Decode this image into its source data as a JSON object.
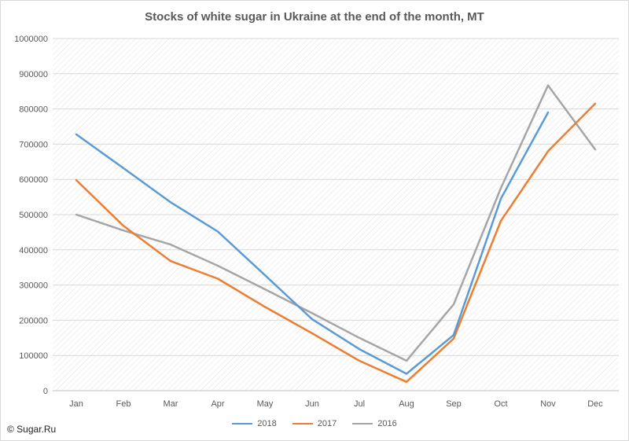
{
  "chart_data": {
    "type": "line",
    "title": "Stocks of white sugar in Ukraine at the end of the month, MT",
    "xlabel": "",
    "ylabel": "",
    "categories": [
      "Jan",
      "Feb",
      "Mar",
      "Apr",
      "May",
      "Jun",
      "Jul",
      "Aug",
      "Sep",
      "Oct",
      "Nov",
      "Dec"
    ],
    "ylim": [
      0,
      1000000
    ],
    "yticks": [
      "0",
      "100000",
      "200000",
      "300000",
      "400000",
      "500000",
      "600000",
      "700000",
      "800000",
      "900000",
      "1000000"
    ],
    "grid": true,
    "legend_position": "bottom",
    "series": [
      {
        "name": "2018",
        "color": "#5b9bd5",
        "values": [
          728000,
          632000,
          535000,
          452000,
          328000,
          203000,
          118000,
          48000,
          158000,
          545000,
          790000,
          null
        ]
      },
      {
        "name": "2017",
        "color": "#ed7d31",
        "values": [
          598000,
          468000,
          368000,
          318000,
          238000,
          163000,
          85000,
          25000,
          148000,
          482000,
          680000,
          815000
        ]
      },
      {
        "name": "2016",
        "color": "#a5a5a5",
        "values": [
          500000,
          455000,
          415000,
          355000,
          288000,
          220000,
          150000,
          85000,
          245000,
          575000,
          867000,
          685000
        ]
      }
    ]
  },
  "credit": "© Sugar.Ru"
}
